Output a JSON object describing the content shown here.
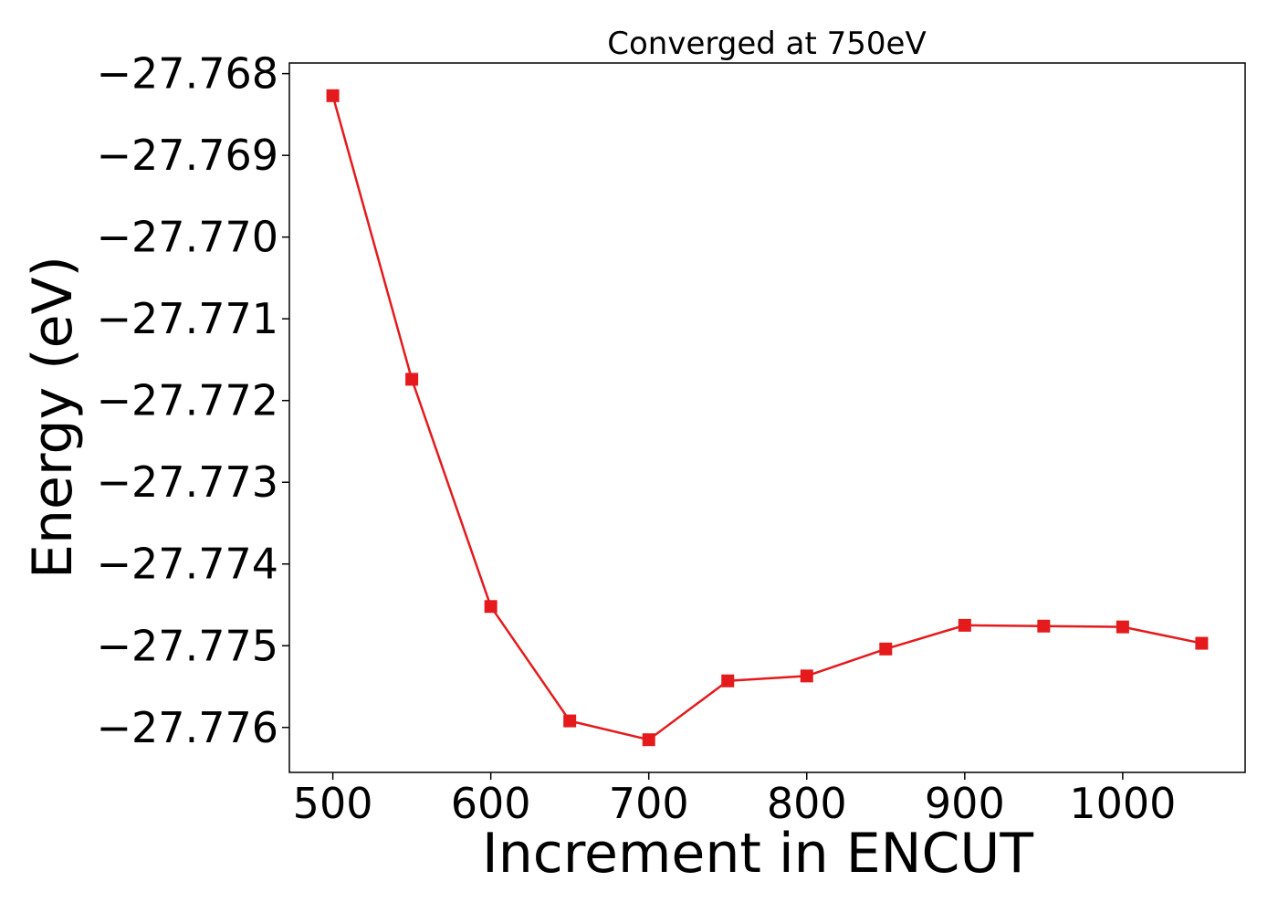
{
  "chart_data": {
    "type": "line",
    "title": "Converged at 750eV",
    "xlabel": "Increment in ENCUT",
    "ylabel": "Energy (eV)",
    "x": [
      500,
      550,
      600,
      650,
      700,
      750,
      800,
      850,
      900,
      950,
      1000,
      1050
    ],
    "series": [
      {
        "values": [
          -27.76827,
          -27.77174,
          -27.77452,
          -27.77592,
          -27.77615,
          -27.77543,
          -27.77537,
          -27.77504,
          -27.77475,
          -27.77476,
          -27.77477,
          -27.77497
        ],
        "color": "#e41a1c",
        "marker": "square"
      }
    ],
    "xticks": [
      500,
      600,
      700,
      800,
      900,
      1000
    ],
    "xtick_labels": [
      "500",
      "600",
      "700",
      "800",
      "900",
      "1000"
    ],
    "yticks": [
      -27.768,
      -27.769,
      -27.77,
      -27.771,
      -27.772,
      -27.773,
      -27.774,
      -27.775,
      -27.776
    ],
    "ytick_labels": [
      "−27.768",
      "−27.769",
      "−27.770",
      "−27.771",
      "−27.772",
      "−27.773",
      "−27.774",
      "−27.775",
      "−27.776"
    ],
    "xlim": [
      472.5,
      1077.5
    ],
    "ylim": [
      -27.77655,
      -27.76787
    ],
    "grid": false,
    "legend": false
  }
}
